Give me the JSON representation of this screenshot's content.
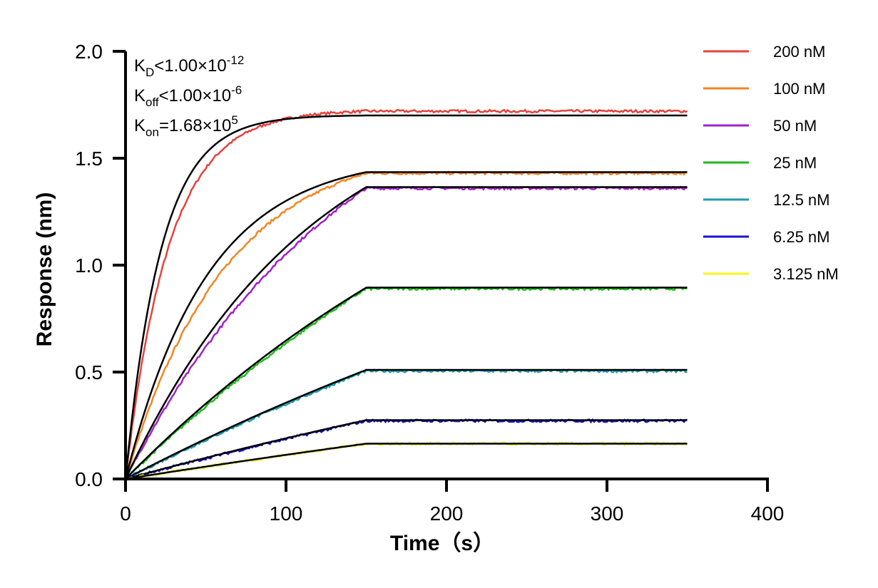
{
  "chart_data": {
    "type": "line",
    "title": "",
    "xlabel": "Time（s）",
    "ylabel": "Response (nm)",
    "xlim": [
      0,
      400
    ],
    "ylim": [
      0,
      2.0
    ],
    "x_ticks": [
      0,
      100,
      200,
      300,
      400
    ],
    "y_ticks": [
      0.0,
      0.5,
      1.0,
      1.5,
      2.0
    ],
    "x_tick_labels": [
      "0",
      "100",
      "200",
      "300",
      "400"
    ],
    "y_tick_labels": [
      "0.0",
      "0.5",
      "1.0",
      "1.5",
      "2.0"
    ],
    "grid": false,
    "legend_position": "top-right",
    "association_end": 150,
    "dissociation_end": 350,
    "kinetics": {
      "kd": {
        "main": "K",
        "sub": "D",
        "rest": "<1.00×10",
        "sup": "-12"
      },
      "koff": {
        "main": "K",
        "sub": "off",
        "rest": "<1.00×10",
        "sup": "-6"
      },
      "kon": {
        "main": "K",
        "sub": "on",
        "rest": "=1.68×10",
        "sup": "5"
      }
    },
    "fit_color": "#000000",
    "series": [
      {
        "name": "200 nM",
        "color": "#e8413c",
        "plateau": 1.7,
        "data_plateau": 1.72,
        "k": 0.045
      },
      {
        "name": "100 nM",
        "color": "#f28522",
        "plateau": 1.435,
        "data_plateau": 1.43,
        "k": 0.0195
      },
      {
        "name": "50 nM",
        "color": "#a021c8",
        "plateau": 1.365,
        "data_plateau": 1.36,
        "k": 0.0085
      },
      {
        "name": "25 nM",
        "color": "#1fba1f",
        "plateau": 0.895,
        "data_plateau": 0.89,
        "k": 0.0035
      },
      {
        "name": "12.5 nM",
        "color": "#1f9bb0",
        "plateau": 0.51,
        "data_plateau": 0.505,
        "k": 0.002
      },
      {
        "name": "6.25 nM",
        "color": "#1515d0",
        "plateau": 0.275,
        "data_plateau": 0.272,
        "k": 0.0015
      },
      {
        "name": "3.125 nM",
        "color": "#f5f51a",
        "plateau": 0.165,
        "data_plateau": 0.165,
        "k": 0.001
      }
    ]
  }
}
